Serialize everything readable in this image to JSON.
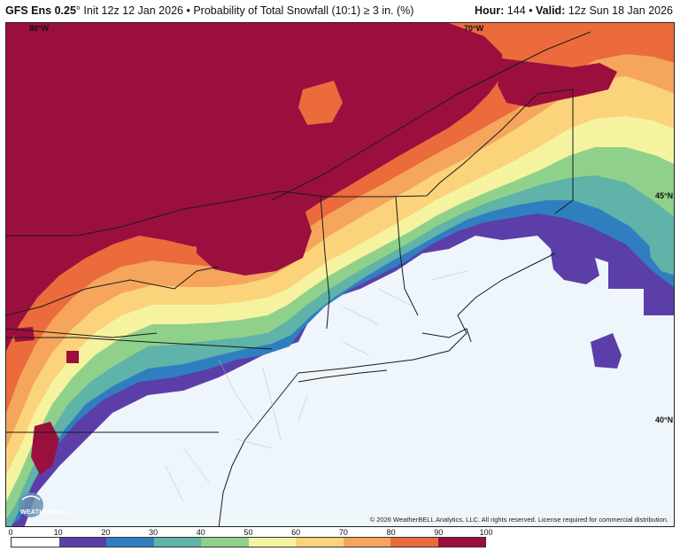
{
  "header": {
    "model": "GFS Ens 0.25",
    "degree": "°",
    "init": "Init 12z 12 Jan 2026",
    "bullet": "•",
    "product": "Probability of Total Snowfall (10:1) ≥ 3 in. (%)",
    "hour_label": "Hour:",
    "hour_value": "144",
    "valid_label": "Valid:",
    "valid_value": "12z Sun 18 Jan 2026"
  },
  "map": {
    "coords": {
      "lon_80w": "80°W",
      "lon_70w": "70°W",
      "lat_45n": "45°N",
      "lat_40n": "40°N"
    },
    "credit": "© 2026 WeatherBELL Analytics, LLC. All rights reserved. License required for commercial distribution.",
    "logo_text": "WEATHERBELL"
  },
  "colorbar": {
    "ticks": [
      "0",
      "10",
      "20",
      "30",
      "40",
      "50",
      "60",
      "70",
      "80",
      "90",
      "100"
    ],
    "colors": [
      "#ffffff",
      "#5b3ea8",
      "#2f7fc0",
      "#5fb3a8",
      "#8fd18a",
      "#f6f3a0",
      "#fbd37a",
      "#f6a55c",
      "#eb6b3d",
      "#9b0f3f"
    ]
  }
}
